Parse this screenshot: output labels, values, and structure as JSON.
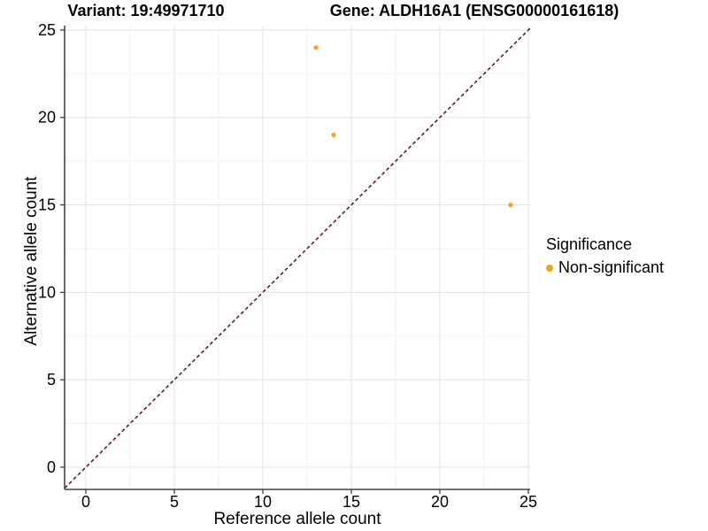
{
  "chart_data": {
    "type": "scatter",
    "title_left": "Variant: 19:49971710",
    "title_right": "Gene: ALDH16A1 (ENSG00000161618)",
    "xlabel": "Reference allele count",
    "ylabel": "Alternative allele count",
    "xlim": [
      -1.2,
      25.1
    ],
    "ylim": [
      -1.27,
      25.25
    ],
    "xticks": [
      0,
      5,
      10,
      15,
      20,
      25
    ],
    "yticks": [
      0,
      5,
      10,
      15,
      20,
      25
    ],
    "xtick_labels": [
      "0",
      "5",
      "10",
      "15",
      "20",
      "25"
    ],
    "ytick_labels": [
      "0",
      "5",
      "10",
      "15",
      "20",
      "25"
    ],
    "minor_xticks": [
      2.5,
      7.5,
      12.5,
      17.5,
      22.5
    ],
    "minor_yticks": [
      2.5,
      7.5,
      12.5,
      17.5,
      22.5
    ],
    "grid": "major+minor",
    "series": [
      {
        "name": "Non-significant",
        "color": "#F9A11B",
        "marker": "circle",
        "points": [
          [
            13,
            24
          ],
          [
            14,
            19
          ],
          [
            24,
            15
          ]
        ]
      }
    ],
    "identity_line": {
      "slope": 1,
      "intercept": 0,
      "style": "dashed"
    },
    "legend": {
      "title": "Significance",
      "position": "right",
      "items": [
        {
          "label": "Non-significant",
          "color": "#F9A11B"
        }
      ]
    }
  },
  "style": {
    "background": "#FFFFFF",
    "point_color": "#F9A11B",
    "point_radius": 2.6,
    "grid_major": "#E3E3E3",
    "grid_minor": "#F2F2F2",
    "axis_line": "#454545",
    "tick_mark": "#333333",
    "text_color": "#000000",
    "dash_dark": "#1C1C1C",
    "dash_red": "#C62F2F"
  }
}
